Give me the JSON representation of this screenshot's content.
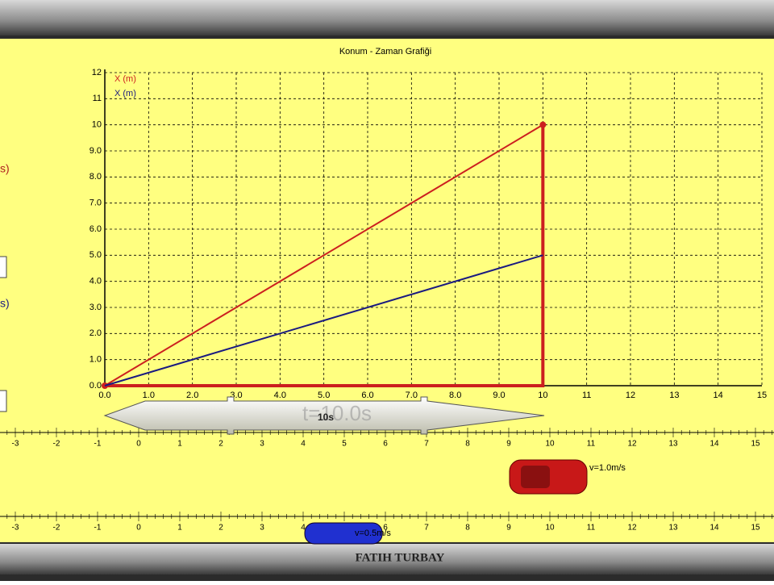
{
  "chart_data": {
    "type": "line",
    "title": "Konum - Zaman Grafiği",
    "x": [
      0,
      10
    ],
    "series": [
      {
        "name": "X (m)",
        "color": "#cc1f1f",
        "values": [
          0,
          10
        ]
      },
      {
        "name": "X (m)",
        "color": "#1a1a80",
        "values": [
          0,
          5
        ]
      }
    ],
    "xlim": [
      0,
      15
    ],
    "xticks": [
      {
        "value": 0,
        "label": "0.0"
      },
      {
        "value": 1,
        "label": "1.0"
      },
      {
        "value": 2,
        "label": "2.0"
      },
      {
        "value": 3,
        "label": "3.0"
      },
      {
        "value": 4,
        "label": "4.0"
      },
      {
        "value": 5,
        "label": "5.0"
      },
      {
        "value": 6,
        "label": "6.0"
      },
      {
        "value": 7,
        "label": "7.0"
      },
      {
        "value": 8,
        "label": "8.0"
      },
      {
        "value": 9,
        "label": "9.0"
      },
      10,
      11,
      12,
      13,
      14,
      15
    ],
    "ylim": [
      0,
      12
    ],
    "yticks": [
      {
        "value": 0,
        "label": "0.0"
      },
      {
        "value": 1,
        "label": "1.0"
      },
      {
        "value": 2,
        "label": "2.0"
      },
      {
        "value": 3,
        "label": "3.0"
      },
      {
        "value": 4,
        "label": "4.0"
      },
      {
        "value": 5,
        "label": "5.0"
      },
      {
        "value": 6,
        "label": "6.0"
      },
      {
        "value": 7,
        "label": "7.0"
      },
      {
        "value": 8,
        "label": "8.0"
      },
      {
        "value": 9,
        "label": "9.0"
      },
      10,
      11,
      12
    ],
    "grid": true
  },
  "time_display": "t=10.0s",
  "time_arrow_label": "10s",
  "ruler_ticks": [
    -3,
    -2,
    -1,
    0,
    1,
    2,
    3,
    4,
    5,
    6,
    7,
    8,
    9,
    10,
    11,
    12,
    13,
    14,
    15
  ],
  "cars": [
    {
      "label": "v=1.0m/s"
    },
    {
      "label": "v=0.5m/s"
    }
  ],
  "left_panel": [
    "s)",
    "s)"
  ],
  "footer": "FATIH TURBAY"
}
